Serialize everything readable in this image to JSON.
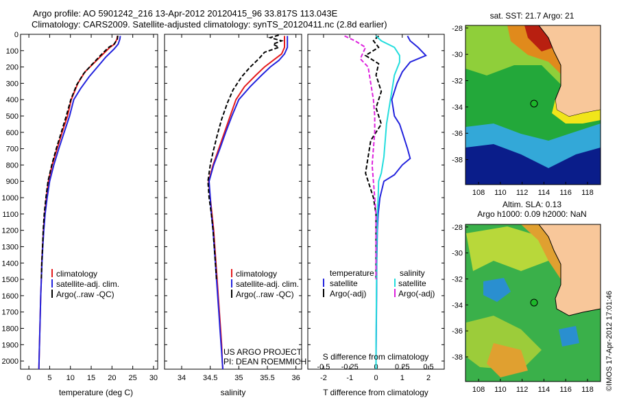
{
  "header": {
    "line1": "Argo profile: AO 5901242_216 13-Apr-2012 20120415_96 33.817S 113.043E",
    "line2": "Climatology: CARS2009. Satellite-adjusted climatology: synTS_20120411.nc (2.8d earlier)"
  },
  "colors": {
    "climatology": "#e41a1c",
    "satellite": "#2222dd",
    "argo": "#000000",
    "sat_salinity": "#22dddd",
    "argo_adj_salinity": "#dd22dd"
  },
  "chart_data": [
    {
      "type": "line",
      "xlabel": "temperature (deg C)",
      "xticks": [
        "0",
        "5",
        "10",
        "15",
        "20",
        "25",
        "30"
      ],
      "xlim": [
        -2,
        31
      ],
      "yticks": [
        "0",
        "100",
        "200",
        "300",
        "400",
        "500",
        "600",
        "700",
        "800",
        "900",
        "1000",
        "1100",
        "1200",
        "1300",
        "1400",
        "1500",
        "1600",
        "1700",
        "1800",
        "1900",
        "2000"
      ],
      "ylim": [
        2050,
        0
      ],
      "legend": [
        "climatology",
        "satellite-adj. clim.",
        "Argo(..raw -QC)"
      ],
      "series": [
        {
          "name": "climatology",
          "color": "#e41a1c",
          "points": [
            [
              21.3,
              10
            ],
            [
              21.2,
              30
            ],
            [
              20.6,
              60
            ],
            [
              19.5,
              80
            ],
            [
              17.5,
              130
            ],
            [
              15.5,
              180
            ],
            [
              13.5,
              230
            ],
            [
              11.8,
              300
            ],
            [
              10.2,
              400
            ],
            [
              9.3,
              500
            ],
            [
              8.0,
              600
            ],
            [
              6.8,
              700
            ],
            [
              5.6,
              800
            ],
            [
              4.7,
              900
            ],
            [
              4.2,
              1000
            ],
            [
              3.8,
              1100
            ],
            [
              3.5,
              1200
            ],
            [
              3.3,
              1300
            ],
            [
              3.1,
              1400
            ],
            [
              3.0,
              1500
            ],
            [
              2.85,
              1600
            ],
            [
              2.75,
              1700
            ],
            [
              2.65,
              1800
            ],
            [
              2.55,
              1900
            ],
            [
              2.45,
              2000
            ],
            [
              2.4,
              2050
            ]
          ]
        },
        {
          "name": "satellite-adj. clim.",
          "color": "#2222dd",
          "points": [
            [
              22.0,
              10
            ],
            [
              21.9,
              30
            ],
            [
              21.5,
              60
            ],
            [
              20.5,
              90
            ],
            [
              18.5,
              140
            ],
            [
              16.5,
              200
            ],
            [
              14.5,
              260
            ],
            [
              12.5,
              330
            ],
            [
              10.8,
              400
            ],
            [
              9.8,
              500
            ],
            [
              8.5,
              600
            ],
            [
              7.2,
              700
            ],
            [
              6.0,
              800
            ],
            [
              5.0,
              900
            ],
            [
              4.4,
              1000
            ],
            [
              3.9,
              1100
            ],
            [
              3.6,
              1200
            ],
            [
              3.35,
              1300
            ],
            [
              3.15,
              1400
            ],
            [
              3.0,
              1500
            ],
            [
              2.85,
              1600
            ],
            [
              2.75,
              1700
            ],
            [
              2.65,
              1800
            ],
            [
              2.55,
              1900
            ],
            [
              2.45,
              2000
            ],
            [
              2.4,
              2050
            ]
          ]
        },
        {
          "name": "Argo(..raw -QC)",
          "color": "#000000",
          "dash": "6,3",
          "points": [
            [
              21.4,
              8
            ],
            [
              21.3,
              30
            ],
            [
              20.5,
              60
            ],
            [
              19.2,
              80
            ],
            [
              17.2,
              130
            ],
            [
              15.0,
              190
            ],
            [
              13.2,
              240
            ],
            [
              11.5,
              310
            ],
            [
              10.1,
              400
            ],
            [
              9.0,
              500
            ],
            [
              7.8,
              600
            ],
            [
              6.6,
              700
            ],
            [
              5.5,
              800
            ],
            [
              4.6,
              900
            ],
            [
              4.1,
              1000
            ],
            [
              3.7,
              1100
            ],
            [
              3.45,
              1200
            ],
            [
              3.3,
              1300
            ],
            [
              3.1,
              1400
            ],
            [
              3.0,
              1500
            ]
          ]
        }
      ]
    },
    {
      "type": "line",
      "xlabel": "salinity",
      "xticks": [
        "34",
        "34.5",
        "35",
        "35.5",
        "36"
      ],
      "xlim": [
        33.7,
        36.1
      ],
      "legend": [
        "climatology",
        "satellite-adj. clim.",
        "Argo(..raw -QC)"
      ],
      "annotation": [
        "US ARGO PROJECT",
        "PI: DEAN ROEMMICH"
      ],
      "series": [
        {
          "name": "climatology",
          "color": "#e41a1c",
          "points": [
            [
              35.8,
              10
            ],
            [
              35.8,
              40
            ],
            [
              35.8,
              80
            ],
            [
              35.75,
              120
            ],
            [
              35.6,
              160
            ],
            [
              35.45,
              200
            ],
            [
              35.3,
              250
            ],
            [
              35.1,
              320
            ],
            [
              34.95,
              400
            ],
            [
              34.85,
              500
            ],
            [
              34.75,
              600
            ],
            [
              34.65,
              700
            ],
            [
              34.55,
              800
            ],
            [
              34.47,
              900
            ],
            [
              34.5,
              1000
            ],
            [
              34.53,
              1100
            ],
            [
              34.56,
              1200
            ],
            [
              34.58,
              1300
            ],
            [
              34.6,
              1400
            ],
            [
              34.62,
              1500
            ],
            [
              34.64,
              1600
            ],
            [
              34.66,
              1700
            ],
            [
              34.68,
              1800
            ],
            [
              34.7,
              1900
            ],
            [
              34.71,
              2000
            ],
            [
              34.72,
              2050
            ]
          ]
        },
        {
          "name": "satellite-adj. clim.",
          "color": "#2222dd",
          "points": [
            [
              35.85,
              10
            ],
            [
              35.85,
              40
            ],
            [
              35.85,
              80
            ],
            [
              35.8,
              120
            ],
            [
              35.7,
              160
            ],
            [
              35.55,
              200
            ],
            [
              35.4,
              250
            ],
            [
              35.2,
              320
            ],
            [
              35.0,
              400
            ],
            [
              34.88,
              500
            ],
            [
              34.77,
              600
            ],
            [
              34.67,
              700
            ],
            [
              34.56,
              800
            ],
            [
              34.48,
              900
            ],
            [
              34.5,
              1000
            ],
            [
              34.52,
              1100
            ],
            [
              34.55,
              1200
            ],
            [
              34.57,
              1300
            ],
            [
              34.59,
              1400
            ],
            [
              34.61,
              1500
            ],
            [
              34.63,
              1600
            ],
            [
              34.65,
              1700
            ],
            [
              34.67,
              1800
            ],
            [
              34.69,
              1900
            ],
            [
              34.71,
              2000
            ],
            [
              34.72,
              2050
            ]
          ]
        },
        {
          "name": "Argo(..raw -QC)",
          "color": "#000000",
          "dash": "6,3",
          "points": [
            [
              35.7,
              5
            ],
            [
              35.55,
              20
            ],
            [
              35.75,
              40
            ],
            [
              35.6,
              60
            ],
            [
              35.7,
              80
            ],
            [
              35.45,
              110
            ],
            [
              35.35,
              150
            ],
            [
              35.2,
              200
            ],
            [
              35.05,
              260
            ],
            [
              34.9,
              340
            ],
            [
              34.8,
              420
            ],
            [
              34.7,
              520
            ],
            [
              34.62,
              620
            ],
            [
              34.55,
              720
            ],
            [
              34.5,
              800
            ],
            [
              34.46,
              900
            ],
            [
              34.48,
              1000
            ],
            [
              34.52,
              1100
            ],
            [
              34.55,
              1200
            ],
            [
              34.57,
              1300
            ],
            [
              34.59,
              1400
            ],
            [
              34.61,
              1500
            ]
          ]
        }
      ]
    },
    {
      "type": "line",
      "xlabel": "T difference from climatology",
      "xticks": [
        "-2",
        "-1",
        "0",
        "1",
        "2"
      ],
      "xlim": [
        -2.6,
        2.6
      ],
      "x2label": "S difference from climatology",
      "x2ticks": [
        "-0.5",
        "-0.25",
        "0",
        "0.25",
        "0.5"
      ],
      "legend_titles": [
        "temperature",
        "salinity"
      ],
      "legend": [
        "satellite",
        "Argo(-adj)",
        "satellite",
        "Argo(-adj)"
      ],
      "series": [
        {
          "name": "satellite",
          "color": "#2222dd",
          "points": [
            [
              1.2,
              10
            ],
            [
              1.3,
              40
            ],
            [
              1.6,
              80
            ],
            [
              1.9,
              130
            ],
            [
              1.3,
              170
            ],
            [
              1.0,
              230
            ],
            [
              0.8,
              300
            ],
            [
              0.6,
              400
            ],
            [
              0.7,
              500
            ],
            [
              0.9,
              550
            ],
            [
              1.0,
              600
            ],
            [
              1.2,
              700
            ],
            [
              1.3,
              760
            ],
            [
              1.0,
              800
            ],
            [
              0.7,
              860
            ],
            [
              0.3,
              900
            ],
            [
              0.15,
              1000
            ],
            [
              0.08,
              1100
            ],
            [
              0.05,
              1200
            ],
            [
              0.03,
              1400
            ],
            [
              0.02,
              1600
            ],
            [
              0.01,
              1800
            ],
            [
              0.0,
              2000
            ],
            [
              0.0,
              2050
            ]
          ]
        },
        {
          "name": "Argo(-adj)",
          "color": "#000000",
          "dash": "6,3",
          "points": [
            [
              0.1,
              10
            ],
            [
              -0.1,
              40
            ],
            [
              0.1,
              80
            ],
            [
              -0.4,
              130
            ],
            [
              0.1,
              180
            ],
            [
              0.0,
              250
            ],
            [
              0.2,
              350
            ],
            [
              0.0,
              450
            ],
            [
              0.2,
              550
            ],
            [
              -0.2,
              650
            ],
            [
              -0.3,
              750
            ],
            [
              -0.4,
              850
            ],
            [
              -0.3,
              900
            ],
            [
              -0.1,
              1000
            ],
            [
              0.0,
              1100
            ],
            [
              0.0,
              1200
            ],
            [
              0.0,
              1400
            ],
            [
              0.0,
              1500
            ]
          ]
        },
        {
          "name": "satellite",
          "color": "#22dddd",
          "points": [
            [
              0.0,
              10
            ],
            [
              0.2,
              40
            ],
            [
              0.7,
              80
            ],
            [
              0.9,
              130
            ],
            [
              0.9,
              170
            ],
            [
              0.7,
              250
            ],
            [
              0.6,
              350
            ],
            [
              0.5,
              450
            ],
            [
              0.4,
              550
            ],
            [
              0.35,
              650
            ],
            [
              0.3,
              750
            ],
            [
              0.2,
              850
            ],
            [
              0.1,
              900
            ],
            [
              0.08,
              1000
            ],
            [
              0.05,
              1100
            ],
            [
              0.03,
              1300
            ],
            [
              0.02,
              1500
            ],
            [
              0.01,
              1700
            ],
            [
              0.0,
              1900
            ],
            [
              0.0,
              2050
            ]
          ]
        },
        {
          "name": "Argo(-adj)",
          "color": "#dd22dd",
          "dash": "6,3",
          "points": [
            [
              -1.2,
              10
            ],
            [
              -0.8,
              40
            ],
            [
              -0.4,
              80
            ],
            [
              -0.6,
              150
            ],
            [
              -0.3,
              200
            ],
            [
              -0.2,
              300
            ],
            [
              -0.1,
              400
            ],
            [
              -0.05,
              500
            ],
            [
              -0.05,
              600
            ],
            [
              -0.1,
              700
            ],
            [
              -0.15,
              800
            ],
            [
              -0.1,
              900
            ],
            [
              -0.05,
              1000
            ],
            [
              0.0,
              1100
            ],
            [
              0.0,
              1300
            ],
            [
              0.0,
              1500
            ]
          ]
        }
      ]
    },
    {
      "type": "heatmap",
      "title": "sat. SST: 21.7 Argo: 21",
      "xticks": [
        "108",
        "110",
        "112",
        "114",
        "116",
        "118"
      ],
      "yticks": [
        "-28",
        "-30",
        "-32",
        "-34",
        "-36",
        "-38"
      ],
      "xlim": [
        106.8,
        119.2
      ],
      "ylim": [
        -39.9,
        -27.8
      ],
      "argo_position": [
        113.043,
        -33.817
      ]
    },
    {
      "type": "heatmap",
      "title": "Altim. SLA: 0.13",
      "subtitle": "Argo h1000: 0.09 h2000: NaN",
      "xticks": [
        "108",
        "110",
        "112",
        "114",
        "116",
        "118"
      ],
      "yticks": [
        "-28",
        "-30",
        "-32",
        "-34",
        "-36",
        "-38"
      ],
      "xlim": [
        106.8,
        119.2
      ],
      "ylim": [
        -39.9,
        -27.8
      ],
      "argo_position": [
        113.043,
        -33.817
      ]
    }
  ],
  "footer": {
    "stamp": "©IMOS 17-Apr-2012 17:01:46"
  }
}
